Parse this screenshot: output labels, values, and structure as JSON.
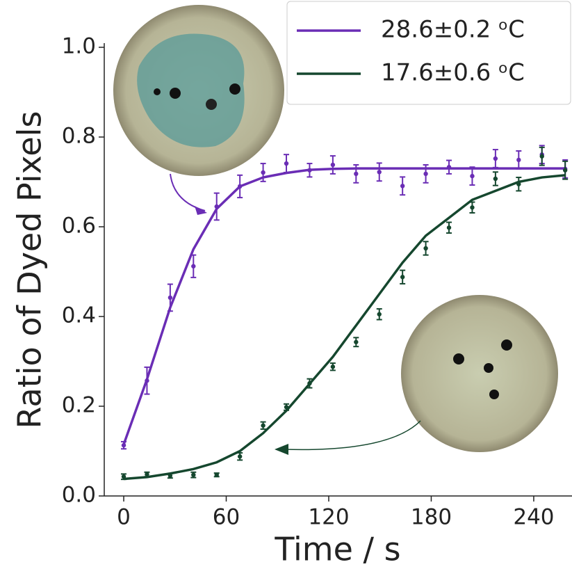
{
  "chart_data": {
    "type": "scatter",
    "x_label": "Time / s",
    "y_label": "Ratio of Dyed Pixels",
    "x": [
      0,
      13.6,
      27.2,
      40.8,
      54.4,
      68,
      81.6,
      95.2,
      108.8,
      122.4,
      136,
      149.6,
      163.2,
      176.8,
      190.4,
      204,
      217.6,
      231.2,
      244.8,
      258.4
    ],
    "series": [
      {
        "name": "28.6±0.2 ᵒC",
        "color": "#6a2db5",
        "values": [
          0.113,
          0.257,
          0.442,
          0.512,
          0.645,
          0.69,
          0.721,
          0.741,
          0.726,
          0.738,
          0.718,
          0.722,
          0.691,
          0.718,
          0.733,
          0.713,
          0.752,
          0.749,
          0.761,
          0.729
        ],
        "errors": [
          0.008,
          0.03,
          0.03,
          0.025,
          0.03,
          0.025,
          0.02,
          0.02,
          0.015,
          0.02,
          0.02,
          0.02,
          0.02,
          0.02,
          0.015,
          0.02,
          0.02,
          0.02,
          0.02,
          0.02
        ],
        "fit": [
          0.115,
          0.26,
          0.42,
          0.55,
          0.64,
          0.69,
          0.71,
          0.72,
          0.727,
          0.729,
          0.73,
          0.73,
          0.73,
          0.73,
          0.73,
          0.73,
          0.73,
          0.73,
          0.73,
          0.73
        ]
      },
      {
        "name": "17.6±0.6 ᵒC",
        "color": "#15472e",
        "values": [
          0.043,
          0.048,
          0.045,
          0.047,
          0.047,
          0.088,
          0.157,
          0.198,
          0.251,
          0.288,
          0.343,
          0.405,
          0.488,
          0.552,
          0.598,
          0.643,
          0.707,
          0.695,
          0.757,
          0.726
        ],
        "errors": [
          0.006,
          0.005,
          0.005,
          0.006,
          0.004,
          0.008,
          0.008,
          0.007,
          0.01,
          0.008,
          0.01,
          0.012,
          0.015,
          0.015,
          0.012,
          0.012,
          0.015,
          0.015,
          0.02,
          0.02
        ],
        "fit": [
          0.038,
          0.042,
          0.05,
          0.06,
          0.075,
          0.1,
          0.14,
          0.19,
          0.25,
          0.31,
          0.38,
          0.45,
          0.52,
          0.58,
          0.62,
          0.66,
          0.68,
          0.7,
          0.71,
          0.715
        ]
      }
    ],
    "xlim": [
      -11.4,
      262.4
    ],
    "ylim": [
      0,
      1
    ],
    "xticks": [
      0,
      60,
      120,
      180,
      240
    ],
    "yticks": [
      {
        "value": 0,
        "label": "0.0"
      },
      0.2,
      0.4,
      0.6,
      0.8,
      {
        "value": 1,
        "label": "1.0"
      }
    ],
    "legend": "upper right"
  }
}
